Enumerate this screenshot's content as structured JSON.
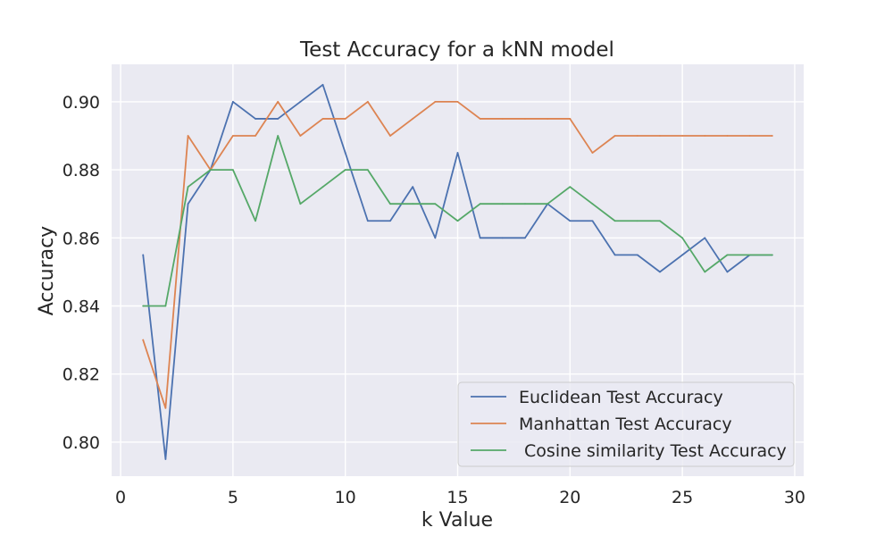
{
  "chart_data": {
    "type": "line",
    "title": "Test Accuracy for a kNN model",
    "xlabel": "k Value",
    "ylabel": "Accuracy",
    "xlim": [
      -0.4,
      30.4
    ],
    "ylim": [
      0.79,
      0.911
    ],
    "xticks": [
      0,
      5,
      10,
      15,
      20,
      25,
      30
    ],
    "yticks": [
      0.8,
      0.82,
      0.84,
      0.86,
      0.88,
      0.9
    ],
    "xtick_labels": [
      "0",
      "5",
      "10",
      "15",
      "20",
      "25",
      "30"
    ],
    "ytick_labels": [
      "0.80",
      "0.82",
      "0.84",
      "0.86",
      "0.88",
      "0.90"
    ],
    "grid": true,
    "legend_position": "lower right",
    "x": [
      1,
      2,
      3,
      4,
      5,
      6,
      7,
      8,
      9,
      10,
      11,
      12,
      13,
      14,
      15,
      16,
      17,
      18,
      19,
      20,
      21,
      22,
      23,
      24,
      25,
      26,
      27,
      28,
      29
    ],
    "series": [
      {
        "name": "Euclidean Test Accuracy",
        "color": "#4c72b0",
        "values": [
          0.855,
          0.795,
          0.87,
          0.88,
          0.9,
          0.895,
          0.895,
          0.9,
          0.905,
          0.885,
          0.865,
          0.865,
          0.875,
          0.86,
          0.885,
          0.86,
          0.86,
          0.86,
          0.87,
          0.865,
          0.865,
          0.855,
          0.855,
          0.85,
          0.855,
          0.86,
          0.85,
          0.855,
          0.855
        ]
      },
      {
        "name": "Manhattan Test Accuracy",
        "color": "#dd8452",
        "values": [
          0.83,
          0.81,
          0.89,
          0.88,
          0.89,
          0.89,
          0.9,
          0.89,
          0.895,
          0.895,
          0.9,
          0.89,
          0.895,
          0.9,
          0.9,
          0.895,
          0.895,
          0.895,
          0.895,
          0.895,
          0.885,
          0.89,
          0.89,
          0.89,
          0.89,
          0.89,
          0.89,
          0.89,
          0.89
        ]
      },
      {
        "name": " Cosine similarity Test Accuracy",
        "color": "#55a868",
        "values": [
          0.84,
          0.84,
          0.875,
          0.88,
          0.88,
          0.865,
          0.89,
          0.87,
          0.875,
          0.88,
          0.88,
          0.87,
          0.87,
          0.87,
          0.865,
          0.87,
          0.87,
          0.87,
          0.87,
          0.875,
          0.87,
          0.865,
          0.865,
          0.865,
          0.86,
          0.85,
          0.855,
          0.855,
          0.855
        ]
      }
    ]
  }
}
